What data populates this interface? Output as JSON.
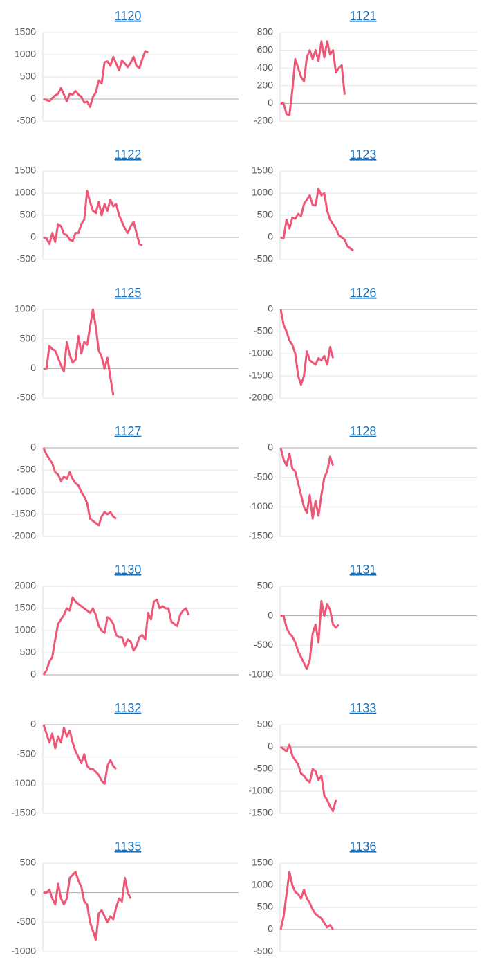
{
  "chart_data": [
    {
      "type": "line",
      "title": "1120",
      "color": "#ef5777",
      "grid": true,
      "ylim": [
        -500,
        1500
      ],
      "yticks": [
        -500,
        0,
        500,
        1000,
        1500
      ],
      "values": [
        0,
        -20,
        -50,
        20,
        80,
        120,
        250,
        100,
        -50,
        120,
        100,
        180,
        100,
        50,
        -80,
        -60,
        -180,
        50,
        150,
        420,
        350,
        830,
        850,
        750,
        950,
        800,
        650,
        870,
        800,
        720,
        820,
        950,
        750,
        700,
        900,
        1080,
        1050
      ]
    },
    {
      "type": "line",
      "title": "1121",
      "color": "#ef5777",
      "grid": true,
      "ylim": [
        -200,
        800
      ],
      "yticks": [
        -200,
        0,
        200,
        400,
        600,
        800
      ],
      "values": [
        0,
        0,
        -120,
        -130,
        150,
        500,
        400,
        300,
        250,
        520,
        600,
        500,
        600,
        480,
        700,
        520,
        700,
        550,
        600,
        350,
        400,
        430,
        100
      ]
    },
    {
      "type": "line",
      "title": "1122",
      "color": "#ef5777",
      "grid": true,
      "ylim": [
        -500,
        1500
      ],
      "yticks": [
        -500,
        0,
        500,
        1000,
        1500
      ],
      "values": [
        0,
        -20,
        -150,
        100,
        -100,
        300,
        250,
        80,
        50,
        -50,
        -80,
        100,
        100,
        300,
        400,
        1050,
        800,
        600,
        550,
        800,
        500,
        750,
        600,
        850,
        700,
        750,
        500,
        350,
        200,
        100,
        250,
        350,
        100,
        -150,
        -180
      ]
    },
    {
      "type": "line",
      "title": "1123",
      "color": "#ef5777",
      "grid": true,
      "ylim": [
        -500,
        1500
      ],
      "yticks": [
        -500,
        0,
        500,
        1000,
        1500
      ],
      "values": [
        0,
        -20,
        400,
        200,
        450,
        420,
        530,
        480,
        750,
        850,
        950,
        730,
        720,
        1100,
        950,
        1000,
        600,
        400,
        300,
        200,
        50,
        0,
        -50,
        -200,
        -250,
        -300
      ]
    },
    {
      "type": "line",
      "title": "1125",
      "color": "#ef5777",
      "grid": true,
      "ylim": [
        -500,
        1000
      ],
      "yticks": [
        -500,
        0,
        500,
        1000
      ],
      "values": [
        0,
        0,
        380,
        330,
        300,
        180,
        50,
        -50,
        450,
        230,
        100,
        150,
        550,
        250,
        450,
        400,
        700,
        1000,
        700,
        300,
        200,
        0,
        180,
        -150,
        -450
      ]
    },
    {
      "type": "line",
      "title": "1126",
      "color": "#ef5777",
      "grid": true,
      "ylim": [
        -2000,
        0
      ],
      "yticks": [
        -2000,
        -1500,
        -1000,
        -500,
        0
      ],
      "values": [
        0,
        -350,
        -500,
        -700,
        -800,
        -1000,
        -1500,
        -1700,
        -1500,
        -950,
        -1150,
        -1200,
        -1250,
        -1100,
        -1150,
        -1050,
        -1250,
        -850,
        -1100
      ]
    },
    {
      "type": "line",
      "title": "1127",
      "color": "#ef5777",
      "grid": true,
      "ylim": [
        -2000,
        0
      ],
      "yticks": [
        -2000,
        -1500,
        -1000,
        -500,
        0
      ],
      "values": [
        0,
        -150,
        -250,
        -350,
        -550,
        -600,
        -750,
        -650,
        -700,
        -550,
        -700,
        -800,
        -850,
        -1000,
        -1100,
        -1250,
        -1600,
        -1650,
        -1700,
        -1750,
        -1550,
        -1450,
        -1500,
        -1450,
        -1550,
        -1600
      ]
    },
    {
      "type": "line",
      "title": "1128",
      "color": "#ef5777",
      "grid": true,
      "ylim": [
        -1500,
        0
      ],
      "yticks": [
        -1500,
        -1000,
        -500,
        0
      ],
      "values": [
        0,
        -200,
        -300,
        -100,
        -350,
        -400,
        -600,
        -800,
        -1000,
        -1100,
        -800,
        -1200,
        -900,
        -1150,
        -800,
        -500,
        -400,
        -150,
        -300
      ]
    },
    {
      "type": "line",
      "title": "1130",
      "color": "#ef5777",
      "grid": true,
      "ylim": [
        0,
        2000
      ],
      "yticks": [
        0,
        500,
        1000,
        1500,
        2000
      ],
      "values": [
        0,
        100,
        300,
        400,
        800,
        1150,
        1250,
        1350,
        1500,
        1450,
        1750,
        1650,
        1600,
        1550,
        1500,
        1450,
        1400,
        1500,
        1350,
        1100,
        1000,
        950,
        1300,
        1250,
        1150,
        900,
        850,
        850,
        650,
        800,
        750,
        550,
        650,
        850,
        900,
        800,
        1400,
        1250,
        1650,
        1700,
        1500,
        1550,
        1500,
        1500,
        1200,
        1150,
        1100,
        1350,
        1450,
        1500,
        1350
      ]
    },
    {
      "type": "line",
      "title": "1131",
      "color": "#ef5777",
      "grid": true,
      "ylim": [
        -1000,
        500
      ],
      "yticks": [
        -1000,
        -500,
        0,
        500
      ],
      "values": [
        0,
        0,
        -200,
        -300,
        -350,
        -450,
        -600,
        -700,
        -800,
        -900,
        -750,
        -300,
        -150,
        -450,
        250,
        0,
        200,
        100,
        -150,
        -200,
        -150
      ]
    },
    {
      "type": "line",
      "title": "1132",
      "color": "#ef5777",
      "grid": true,
      "ylim": [
        -1500,
        0
      ],
      "yticks": [
        -1500,
        -1000,
        -500,
        0
      ],
      "values": [
        0,
        -150,
        -300,
        -150,
        -400,
        -200,
        -300,
        -50,
        -200,
        -100,
        -300,
        -450,
        -550,
        -650,
        -500,
        -700,
        -750,
        -750,
        -800,
        -850,
        -950,
        -1000,
        -700,
        -600,
        -700,
        -750
      ]
    },
    {
      "type": "line",
      "title": "1133",
      "color": "#ef5777",
      "grid": true,
      "ylim": [
        -1500,
        500
      ],
      "yticks": [
        -1500,
        -1000,
        -500,
        0,
        500
      ],
      "values": [
        0,
        -50,
        -100,
        50,
        -200,
        -300,
        -400,
        -600,
        -650,
        -750,
        -800,
        -500,
        -550,
        -750,
        -650,
        -1100,
        -1200,
        -1350,
        -1450,
        -1200
      ]
    },
    {
      "type": "line",
      "title": "1135",
      "color": "#ef5777",
      "grid": true,
      "ylim": [
        -1000,
        500
      ],
      "yticks": [
        -1000,
        -500,
        0,
        500
      ],
      "values": [
        0,
        0,
        50,
        -100,
        -200,
        150,
        -100,
        -200,
        -100,
        250,
        300,
        350,
        200,
        100,
        -150,
        -200,
        -500,
        -650,
        -800,
        -350,
        -300,
        -400,
        -500,
        -400,
        -450,
        -250,
        -100,
        -150,
        250,
        0,
        -100
      ]
    },
    {
      "type": "line",
      "title": "1136",
      "color": "#ef5777",
      "grid": true,
      "ylim": [
        -500,
        1500
      ],
      "yticks": [
        -500,
        0,
        500,
        1000,
        1500
      ],
      "values": [
        0,
        300,
        800,
        1300,
        1000,
        850,
        800,
        700,
        900,
        700,
        600,
        450,
        350,
        300,
        250,
        150,
        50,
        100,
        0
      ]
    }
  ]
}
